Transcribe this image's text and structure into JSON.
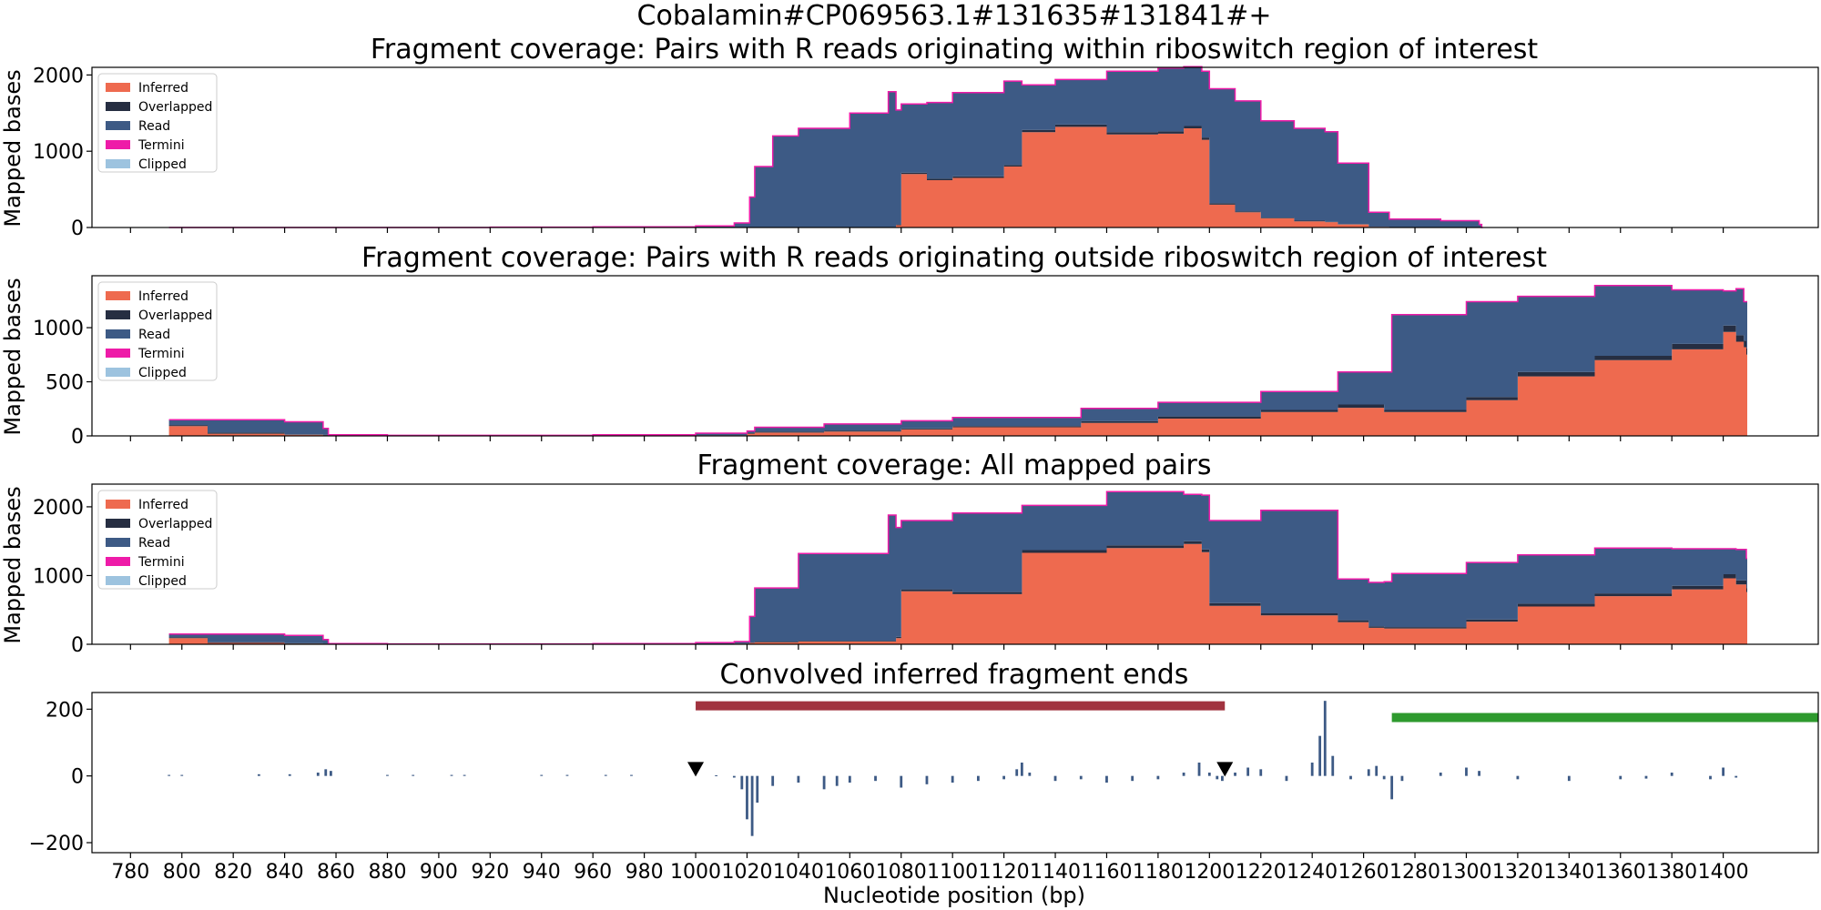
{
  "figure": {
    "suptitle": "Cobalamin#CP069563.1#131635#131841#+",
    "xlabel": "Nucleotide position (bp)"
  },
  "legend": {
    "entries": [
      {
        "label": "Inferred",
        "color": "#EE6A4F"
      },
      {
        "label": "Overlapped",
        "color": "#262E42"
      },
      {
        "label": "Read",
        "color": "#3D5A85"
      },
      {
        "label": "Termini",
        "color": "#EE1BA8"
      },
      {
        "label": "Clipped",
        "color": "#9DC3DF"
      }
    ]
  },
  "chart_data": [
    {
      "type": "area",
      "title": "Fragment coverage: Pairs with R reads originating within riboswitch region of interest",
      "ylabel": "Mapped bases",
      "xlim": [
        765,
        1437
      ],
      "ylim": [
        0,
        2100
      ],
      "yticks": [
        0,
        1000,
        2000
      ],
      "x": [
        795,
        820,
        850,
        857,
        880,
        920,
        960,
        1000,
        1015,
        1021,
        1023,
        1030,
        1040,
        1060,
        1075,
        1078,
        1080,
        1090,
        1100,
        1120,
        1127,
        1140,
        1160,
        1180,
        1190,
        1197,
        1200,
        1210,
        1220,
        1233,
        1245,
        1250,
        1262,
        1270,
        1290,
        1305,
        1306
      ],
      "series": [
        {
          "name": "Inferred",
          "values": [
            0,
            0,
            0,
            0,
            0,
            0,
            0,
            0,
            0,
            0,
            0,
            0,
            0,
            0,
            0,
            30,
            700,
            620,
            650,
            800,
            1250,
            1320,
            1220,
            1230,
            1300,
            1150,
            300,
            200,
            120,
            80,
            70,
            40,
            10,
            0,
            0,
            0,
            0
          ]
        },
        {
          "name": "Overlapped",
          "values": [
            0,
            0,
            0,
            0,
            0,
            0,
            0,
            0,
            0,
            0,
            0,
            0,
            0,
            0,
            0,
            10,
            20,
            20,
            20,
            20,
            30,
            30,
            30,
            30,
            30,
            30,
            20,
            10,
            10,
            10,
            5,
            5,
            0,
            0,
            0,
            0,
            0
          ]
        },
        {
          "name": "Read",
          "values": [
            0,
            0,
            0,
            0,
            0,
            5,
            10,
            20,
            60,
            400,
            800,
            1200,
            1300,
            1500,
            1780,
            1500,
            900,
            1000,
            1100,
            1100,
            590,
            590,
            800,
            830,
            780,
            870,
            1500,
            1450,
            1270,
            1210,
            1180,
            800,
            190,
            110,
            90,
            40,
            0
          ]
        },
        {
          "name": "Termini",
          "values": [
            0,
            0,
            0,
            0,
            0,
            0,
            0,
            0,
            0,
            0,
            0,
            0,
            0,
            0,
            0,
            0,
            0,
            0,
            0,
            0,
            0,
            0,
            0,
            0,
            0,
            0,
            0,
            0,
            0,
            0,
            0,
            0,
            0,
            0,
            0,
            0,
            0
          ]
        },
        {
          "name": "Clipped",
          "values": [
            0,
            0,
            0,
            0,
            0,
            0,
            0,
            0,
            0,
            0,
            0,
            0,
            0,
            0,
            0,
            0,
            0,
            0,
            0,
            0,
            0,
            0,
            0,
            0,
            0,
            0,
            0,
            0,
            0,
            0,
            0,
            0,
            0,
            0,
            0,
            0,
            0
          ]
        }
      ]
    },
    {
      "type": "area",
      "title": "Fragment coverage: Pairs with R reads originating outside riboswitch region of interest",
      "ylabel": "Mapped bases",
      "xlim": [
        765,
        1437
      ],
      "ylim": [
        0,
        1480
      ],
      "yticks": [
        0,
        500,
        1000
      ],
      "x": [
        795,
        800,
        810,
        840,
        855,
        857,
        880,
        920,
        960,
        1000,
        1020,
        1023,
        1050,
        1080,
        1100,
        1150,
        1180,
        1220,
        1250,
        1268,
        1271,
        1300,
        1320,
        1350,
        1380,
        1400,
        1405,
        1408,
        1409
      ],
      "series": [
        {
          "name": "Inferred",
          "values": [
            90,
            90,
            20,
            10,
            5,
            0,
            0,
            0,
            0,
            5,
            20,
            30,
            40,
            60,
            80,
            120,
            160,
            220,
            260,
            220,
            220,
            330,
            550,
            700,
            800,
            960,
            870,
            820,
            750
          ]
        },
        {
          "name": "Overlapped",
          "values": [
            10,
            10,
            10,
            5,
            5,
            0,
            0,
            0,
            0,
            0,
            5,
            10,
            10,
            10,
            10,
            15,
            20,
            20,
            30,
            20,
            20,
            30,
            40,
            40,
            50,
            60,
            60,
            60,
            60
          ]
        },
        {
          "name": "Read",
          "values": [
            50,
            50,
            120,
            115,
            60,
            10,
            5,
            5,
            10,
            20,
            20,
            40,
            60,
            70,
            80,
            120,
            130,
            170,
            300,
            350,
            880,
            880,
            700,
            650,
            500,
            320,
            430,
            360,
            430
          ]
        },
        {
          "name": "Termini",
          "values": [
            0,
            0,
            0,
            0,
            0,
            0,
            0,
            0,
            0,
            0,
            0,
            0,
            0,
            0,
            0,
            0,
            0,
            0,
            0,
            0,
            0,
            0,
            0,
            0,
            0,
            0,
            0,
            0,
            0
          ]
        },
        {
          "name": "Clipped",
          "values": [
            0,
            0,
            0,
            0,
            0,
            0,
            0,
            0,
            0,
            0,
            0,
            0,
            0,
            0,
            0,
            0,
            0,
            0,
            0,
            0,
            0,
            0,
            0,
            0,
            0,
            0,
            0,
            0,
            0
          ]
        }
      ]
    },
    {
      "type": "area",
      "title": "Fragment coverage: All mapped pairs",
      "ylabel": "Mapped bases",
      "xlim": [
        765,
        1437
      ],
      "ylim": [
        0,
        2330
      ],
      "yticks": [
        0,
        1000,
        2000
      ],
      "x": [
        795,
        800,
        810,
        840,
        855,
        857,
        880,
        920,
        960,
        1000,
        1015,
        1021,
        1023,
        1040,
        1075,
        1078,
        1080,
        1100,
        1127,
        1160,
        1190,
        1197,
        1200,
        1220,
        1250,
        1262,
        1268,
        1271,
        1300,
        1320,
        1350,
        1380,
        1400,
        1405,
        1409
      ],
      "series": [
        {
          "name": "Inferred",
          "values": [
            90,
            90,
            20,
            10,
            5,
            0,
            0,
            0,
            0,
            5,
            10,
            20,
            30,
            40,
            40,
            90,
            770,
            730,
            1330,
            1400,
            1460,
            1340,
            560,
            420,
            320,
            240,
            230,
            230,
            330,
            550,
            700,
            800,
            960,
            870,
            760
          ]
        },
        {
          "name": "Overlapped",
          "values": [
            10,
            10,
            10,
            5,
            5,
            0,
            0,
            0,
            0,
            0,
            0,
            5,
            10,
            10,
            10,
            20,
            30,
            30,
            40,
            40,
            40,
            40,
            40,
            30,
            30,
            20,
            20,
            20,
            30,
            40,
            40,
            50,
            60,
            60,
            60
          ]
        },
        {
          "name": "Read",
          "values": [
            50,
            50,
            120,
            115,
            60,
            10,
            5,
            5,
            10,
            20,
            30,
            380,
            780,
            1270,
            1830,
            1590,
            1000,
            1150,
            650,
            780,
            680,
            790,
            1200,
            1500,
            600,
            640,
            660,
            780,
            830,
            710,
            660,
            540,
            370,
            450,
            430
          ]
        },
        {
          "name": "Termini",
          "values": [
            0,
            0,
            0,
            0,
            0,
            0,
            0,
            0,
            0,
            0,
            0,
            0,
            0,
            0,
            0,
            0,
            0,
            0,
            0,
            0,
            0,
            0,
            0,
            0,
            0,
            0,
            0,
            0,
            0,
            0,
            0,
            0,
            0,
            0,
            0
          ]
        },
        {
          "name": "Clipped",
          "values": [
            0,
            0,
            0,
            0,
            0,
            0,
            0,
            0,
            0,
            0,
            0,
            0,
            0,
            0,
            0,
            0,
            0,
            0,
            0,
            0,
            0,
            0,
            0,
            0,
            0,
            0,
            0,
            0,
            0,
            0,
            0,
            0,
            0,
            0,
            0
          ]
        }
      ]
    },
    {
      "type": "bar",
      "title": "Convolved inferred fragment ends",
      "xlabel": "Nucleotide position (bp)",
      "xlim": [
        765,
        1437
      ],
      "ylim": [
        -230,
        250
      ],
      "yticks": [
        -200,
        0,
        200
      ],
      "xticks": [
        780,
        800,
        820,
        840,
        860,
        880,
        900,
        920,
        940,
        960,
        980,
        1000,
        1020,
        1040,
        1060,
        1080,
        1100,
        1120,
        1140,
        1160,
        1180,
        1200,
        1220,
        1240,
        1260,
        1280,
        1300,
        1320,
        1340,
        1360,
        1380,
        1400
      ],
      "color": "#3D5A85",
      "x": [
        795,
        800,
        830,
        842,
        853,
        856,
        858,
        880,
        890,
        905,
        910,
        940,
        950,
        965,
        975,
        1008,
        1015,
        1018,
        1020,
        1022,
        1024,
        1030,
        1040,
        1050,
        1055,
        1060,
        1070,
        1080,
        1090,
        1100,
        1110,
        1120,
        1125,
        1127,
        1130,
        1140,
        1150,
        1160,
        1170,
        1180,
        1190,
        1196,
        1200,
        1203,
        1205,
        1210,
        1215,
        1220,
        1230,
        1240,
        1243,
        1245,
        1248,
        1255,
        1262,
        1265,
        1268,
        1271,
        1275,
        1290,
        1300,
        1305,
        1320,
        1340,
        1360,
        1370,
        1380,
        1395,
        1400,
        1405
      ],
      "values": [
        3,
        3,
        5,
        5,
        10,
        20,
        15,
        3,
        3,
        3,
        3,
        3,
        3,
        3,
        3,
        2,
        -5,
        -40,
        -130,
        -180,
        -80,
        -30,
        -20,
        -40,
        -30,
        -20,
        -15,
        -35,
        -25,
        -20,
        -15,
        -10,
        20,
        40,
        10,
        -15,
        -10,
        -20,
        -15,
        -10,
        10,
        40,
        10,
        -10,
        -15,
        10,
        25,
        20,
        -15,
        40,
        120,
        225,
        60,
        -10,
        20,
        30,
        -10,
        -70,
        -15,
        10,
        25,
        15,
        -10,
        -15,
        -10,
        -8,
        10,
        -10,
        25,
        -5
      ],
      "annotations": {
        "red_bar": {
          "x0": 1000,
          "x1": 1206,
          "y": 210,
          "color": "#A1333F"
        },
        "green_bar": {
          "x0": 1271,
          "x1": 1437,
          "y": 175,
          "color": "#2E9A2E"
        },
        "markers": [
          {
            "x": 1000,
            "y": 20,
            "shape": "down-triangle",
            "color": "#000000"
          },
          {
            "x": 1206,
            "y": 20,
            "shape": "down-triangle",
            "color": "#000000"
          }
        ]
      }
    }
  ]
}
